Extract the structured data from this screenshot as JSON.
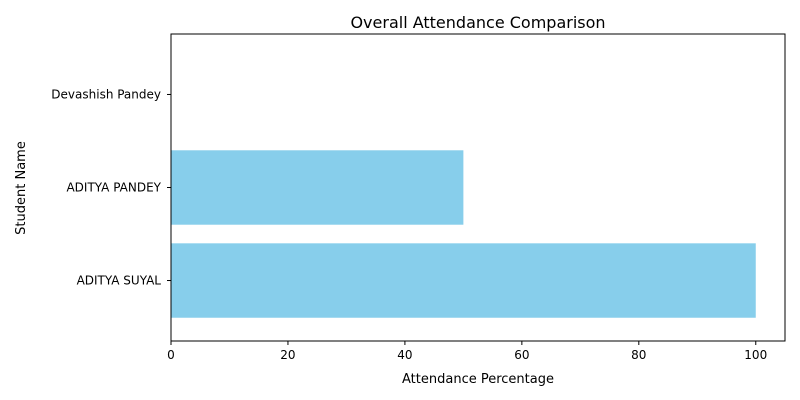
{
  "chart_data": {
    "type": "bar",
    "orientation": "horizontal",
    "title": "Overall Attendance Comparison",
    "xlabel": "Attendance Percentage",
    "ylabel": "Student Name",
    "categories": [
      "ADITYA SUYAL",
      "ADITYA PANDEY",
      "Devashish Pandey"
    ],
    "values": [
      100,
      50,
      0
    ],
    "xlim": [
      0,
      105
    ],
    "xticks": [
      0,
      20,
      40,
      60,
      80,
      100
    ],
    "grid": false,
    "legend": "none",
    "bar_color": "#87CEEB"
  }
}
